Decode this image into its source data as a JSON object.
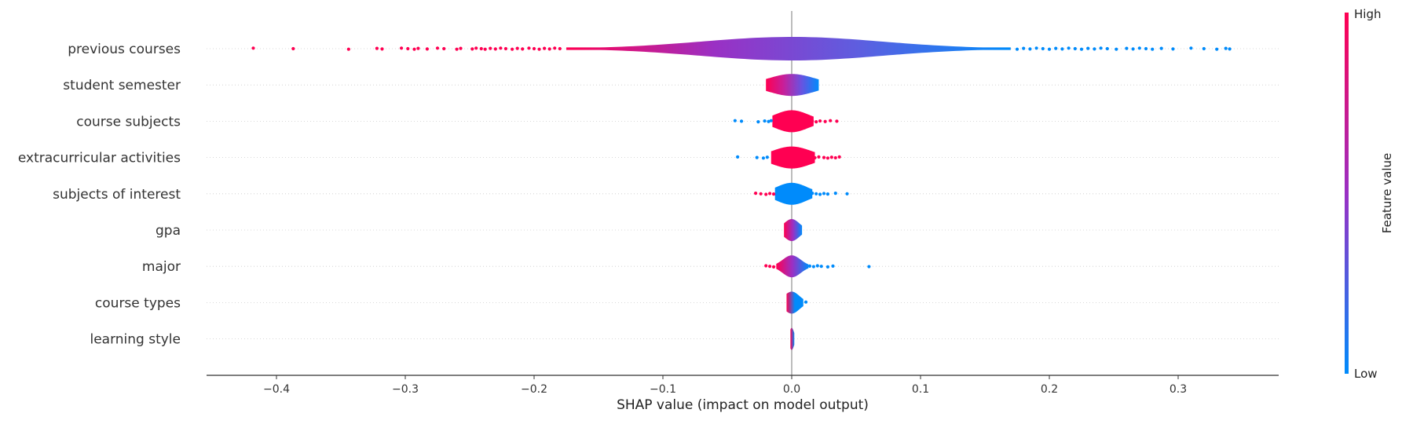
{
  "chart_data": {
    "type": "violin",
    "xlabel": "SHAP value (impact on model output)",
    "xlim": [
      -0.455,
      0.375
    ],
    "xticks": [
      -0.4,
      -0.3,
      -0.2,
      -0.1,
      0.0,
      0.1,
      0.2,
      0.3
    ],
    "xtick_labels": [
      "−0.4",
      "−0.3",
      "−0.2",
      "−0.1",
      "0.0",
      "0.1",
      "0.2",
      "0.3"
    ],
    "grid": "horizontal dotted",
    "colors": {
      "low": "#008bfb",
      "high": "#ff0052",
      "mid": "#9a30c4",
      "zero_line": "#999999",
      "axis": "#333333"
    },
    "colorbar": {
      "title": "Feature value",
      "high_label": "High",
      "low_label": "Low"
    },
    "features": [
      {
        "name": "previous courses",
        "violin": {
          "range": [
            -0.175,
            0.17
          ],
          "dense_width": 0.07,
          "color_stops": [
            "#ff0052",
            "#9a30c4",
            "#5c5fe0",
            "#008bfb"
          ]
        },
        "outliers": [
          {
            "x": -0.418,
            "c": "high"
          },
          {
            "x": -0.387,
            "c": "high"
          },
          {
            "x": -0.344,
            "c": "high"
          },
          {
            "x": -0.322,
            "c": "high"
          },
          {
            "x": -0.318,
            "c": "high"
          },
          {
            "x": -0.303,
            "c": "high"
          },
          {
            "x": -0.298,
            "c": "high"
          },
          {
            "x": -0.293,
            "c": "high"
          },
          {
            "x": -0.29,
            "c": "high"
          },
          {
            "x": -0.283,
            "c": "high"
          },
          {
            "x": -0.275,
            "c": "high"
          },
          {
            "x": -0.27,
            "c": "high"
          },
          {
            "x": -0.26,
            "c": "high"
          },
          {
            "x": -0.257,
            "c": "high"
          },
          {
            "x": -0.248,
            "c": "high"
          },
          {
            "x": -0.245,
            "c": "high"
          },
          {
            "x": -0.241,
            "c": "high"
          },
          {
            "x": -0.238,
            "c": "high"
          },
          {
            "x": -0.234,
            "c": "high"
          },
          {
            "x": -0.23,
            "c": "high"
          },
          {
            "x": -0.226,
            "c": "high"
          },
          {
            "x": -0.222,
            "c": "high"
          },
          {
            "x": -0.217,
            "c": "high"
          },
          {
            "x": -0.213,
            "c": "high"
          },
          {
            "x": -0.209,
            "c": "high"
          },
          {
            "x": -0.204,
            "c": "high"
          },
          {
            "x": -0.2,
            "c": "high"
          },
          {
            "x": -0.196,
            "c": "high"
          },
          {
            "x": -0.192,
            "c": "high"
          },
          {
            "x": -0.188,
            "c": "high"
          },
          {
            "x": -0.184,
            "c": "high"
          },
          {
            "x": -0.18,
            "c": "high"
          },
          {
            "x": 0.175,
            "c": "low"
          },
          {
            "x": 0.18,
            "c": "low"
          },
          {
            "x": 0.185,
            "c": "low"
          },
          {
            "x": 0.19,
            "c": "low"
          },
          {
            "x": 0.195,
            "c": "low"
          },
          {
            "x": 0.2,
            "c": "low"
          },
          {
            "x": 0.205,
            "c": "low"
          },
          {
            "x": 0.21,
            "c": "low"
          },
          {
            "x": 0.215,
            "c": "low"
          },
          {
            "x": 0.22,
            "c": "low"
          },
          {
            "x": 0.225,
            "c": "low"
          },
          {
            "x": 0.23,
            "c": "low"
          },
          {
            "x": 0.235,
            "c": "low"
          },
          {
            "x": 0.24,
            "c": "low"
          },
          {
            "x": 0.245,
            "c": "low"
          },
          {
            "x": 0.252,
            "c": "low"
          },
          {
            "x": 0.26,
            "c": "low"
          },
          {
            "x": 0.265,
            "c": "low"
          },
          {
            "x": 0.27,
            "c": "low"
          },
          {
            "x": 0.275,
            "c": "low"
          },
          {
            "x": 0.28,
            "c": "low"
          },
          {
            "x": 0.287,
            "c": "low"
          },
          {
            "x": 0.296,
            "c": "low"
          },
          {
            "x": 0.31,
            "c": "low"
          },
          {
            "x": 0.32,
            "c": "low"
          },
          {
            "x": 0.33,
            "c": "low"
          },
          {
            "x": 0.337,
            "c": "low"
          },
          {
            "x": 0.34,
            "c": "low"
          }
        ]
      },
      {
        "name": "student semester",
        "violin": {
          "range": [
            -0.02,
            0.021
          ],
          "dense_width": 0.018,
          "color_stops": [
            "#ff0052",
            "#c71f9a",
            "#6a52e0",
            "#008bfb"
          ]
        },
        "outliers": []
      },
      {
        "name": "course subjects",
        "violin": {
          "range": [
            -0.015,
            0.017
          ],
          "dense_width": 0.013,
          "color_stops": [
            "#ff0052",
            "#ff0052"
          ]
        },
        "outliers": [
          {
            "x": -0.044,
            "c": "low"
          },
          {
            "x": -0.039,
            "c": "low"
          },
          {
            "x": -0.026,
            "c": "low"
          },
          {
            "x": -0.021,
            "c": "low"
          },
          {
            "x": -0.018,
            "c": "low"
          },
          {
            "x": -0.016,
            "c": "low"
          },
          {
            "x": 0.016,
            "c": "high"
          },
          {
            "x": 0.019,
            "c": "high"
          },
          {
            "x": 0.022,
            "c": "high"
          },
          {
            "x": 0.026,
            "c": "high"
          },
          {
            "x": 0.03,
            "c": "high"
          },
          {
            "x": 0.035,
            "c": "high"
          }
        ]
      },
      {
        "name": "extracurricular activities",
        "violin": {
          "range": [
            -0.016,
            0.018
          ],
          "dense_width": 0.015,
          "color_stops": [
            "#ff0052",
            "#ff0052"
          ]
        },
        "outliers": [
          {
            "x": -0.042,
            "c": "low"
          },
          {
            "x": -0.027,
            "c": "low"
          },
          {
            "x": -0.022,
            "c": "low"
          },
          {
            "x": -0.019,
            "c": "low"
          },
          {
            "x": 0.018,
            "c": "high"
          },
          {
            "x": 0.021,
            "c": "high"
          },
          {
            "x": 0.025,
            "c": "high"
          },
          {
            "x": 0.028,
            "c": "high"
          },
          {
            "x": 0.031,
            "c": "high"
          },
          {
            "x": 0.034,
            "c": "high"
          },
          {
            "x": 0.037,
            "c": "high"
          }
        ]
      },
      {
        "name": "subjects of interest",
        "violin": {
          "range": [
            -0.013,
            0.016
          ],
          "dense_width": 0.012,
          "color_stops": [
            "#008bfb",
            "#008bfb"
          ]
        },
        "outliers": [
          {
            "x": -0.028,
            "c": "high"
          },
          {
            "x": -0.024,
            "c": "high"
          },
          {
            "x": -0.02,
            "c": "high"
          },
          {
            "x": -0.017,
            "c": "high"
          },
          {
            "x": -0.014,
            "c": "high"
          },
          {
            "x": 0.016,
            "c": "low"
          },
          {
            "x": 0.019,
            "c": "low"
          },
          {
            "x": 0.022,
            "c": "low"
          },
          {
            "x": 0.025,
            "c": "low"
          },
          {
            "x": 0.028,
            "c": "low"
          },
          {
            "x": 0.034,
            "c": "low"
          },
          {
            "x": 0.043,
            "c": "low"
          }
        ]
      },
      {
        "name": "gpa",
        "violin": {
          "range": [
            -0.006,
            0.008
          ],
          "dense_width": 0.006,
          "color_stops": [
            "#ff0052",
            "#9a30c4",
            "#008bfb"
          ]
        },
        "outliers": []
      },
      {
        "name": "major",
        "violin": {
          "range": [
            -0.012,
            0.013
          ],
          "dense_width": 0.007,
          "color_stops": [
            "#ff0052",
            "#9a30c4",
            "#008bfb"
          ]
        },
        "outliers": [
          {
            "x": -0.02,
            "c": "high"
          },
          {
            "x": -0.017,
            "c": "high"
          },
          {
            "x": -0.014,
            "c": "high"
          },
          {
            "x": 0.014,
            "c": "low"
          },
          {
            "x": 0.017,
            "c": "low"
          },
          {
            "x": 0.02,
            "c": "low"
          },
          {
            "x": 0.023,
            "c": "low"
          },
          {
            "x": 0.028,
            "c": "low"
          },
          {
            "x": 0.032,
            "c": "low"
          },
          {
            "x": 0.06,
            "c": "low"
          }
        ]
      },
      {
        "name": "course types",
        "violin": {
          "range": [
            -0.004,
            0.009
          ],
          "dense_width": 0.006,
          "color_stops": [
            "#ff0052",
            "#008bfb",
            "#008bfb"
          ]
        },
        "outliers": [
          {
            "x": 0.011,
            "c": "low"
          }
        ]
      },
      {
        "name": "learning style",
        "violin": {
          "range": [
            -0.001,
            0.002
          ],
          "dense_width": 0.0018,
          "color_stops": [
            "#ff0052",
            "#008bfb"
          ]
        },
        "outliers": []
      }
    ]
  }
}
